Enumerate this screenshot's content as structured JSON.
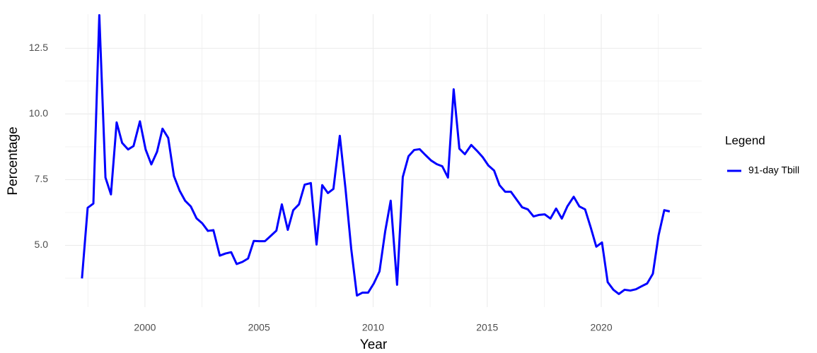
{
  "chart_data": {
    "type": "line",
    "x_label": "Year",
    "y_label": "Percentage",
    "legend_title": "Legend",
    "x": [
      1997.24,
      1997.49,
      1997.74,
      1998.0,
      1998.27,
      1998.51,
      1998.76,
      1999.0,
      1999.26,
      1999.5,
      1999.78,
      2000.03,
      2000.28,
      2000.53,
      2000.77,
      2001.02,
      2001.27,
      2001.52,
      2001.76,
      2002.01,
      2002.26,
      2002.51,
      2002.76,
      2003.0,
      2003.28,
      2003.53,
      2003.78,
      2004.02,
      2004.27,
      2004.52,
      2004.77,
      2005.0,
      2005.26,
      2005.5,
      2005.76,
      2006.0,
      2006.26,
      2006.5,
      2006.75,
      2007.0,
      2007.27,
      2007.52,
      2007.77,
      2008.02,
      2008.26,
      2008.54,
      2008.79,
      2009.04,
      2009.29,
      2009.53,
      2009.78,
      2010.03,
      2010.28,
      2010.53,
      2010.77,
      2011.05,
      2011.3,
      2011.55,
      2011.8,
      2012.04,
      2012.29,
      2012.54,
      2012.79,
      2013.03,
      2013.28,
      2013.53,
      2013.78,
      2014.02,
      2014.3,
      2014.55,
      2014.8,
      2015.05,
      2015.3,
      2015.54,
      2015.79,
      2016.04,
      2016.28,
      2016.53,
      2016.78,
      2017.03,
      2017.28,
      2017.52,
      2017.77,
      2018.02,
      2018.27,
      2018.51,
      2018.79,
      2019.04,
      2019.29,
      2019.54,
      2019.78,
      2020.03,
      2020.28,
      2020.53,
      2020.77,
      2021.02,
      2021.27,
      2021.52,
      2021.76,
      2022.01,
      2022.26,
      2022.51,
      2022.76,
      2023.0
    ],
    "series": [
      {
        "name": "91-day Tbill",
        "color": "#0000ff",
        "values": [
          3.74,
          6.43,
          6.59,
          13.76,
          7.58,
          6.94,
          9.68,
          8.9,
          8.65,
          8.78,
          9.72,
          8.65,
          8.08,
          8.56,
          9.44,
          9.09,
          7.64,
          7.08,
          6.7,
          6.48,
          6.03,
          5.84,
          5.55,
          5.58,
          4.61,
          4.69,
          4.74,
          4.29,
          4.37,
          4.5,
          5.17,
          5.16,
          5.16,
          5.35,
          5.56,
          6.56,
          5.59,
          6.34,
          6.56,
          7.31,
          7.37,
          5.03,
          7.29,
          6.99,
          7.15,
          9.17,
          7.15,
          4.87,
          3.09,
          3.2,
          3.2,
          3.55,
          4.01,
          5.54,
          6.7,
          3.5,
          7.6,
          8.39,
          8.63,
          8.66,
          8.44,
          8.23,
          8.09,
          8.01,
          7.58,
          10.94,
          8.68,
          8.47,
          8.82,
          8.6,
          8.36,
          8.04,
          7.85,
          7.29,
          7.04,
          7.04,
          6.75,
          6.45,
          6.37,
          6.1,
          6.16,
          6.18,
          6.02,
          6.4,
          6.02,
          6.48,
          6.85,
          6.48,
          6.37,
          5.67,
          4.95,
          5.11,
          3.6,
          3.31,
          3.15,
          3.31,
          3.28,
          3.33,
          3.44,
          3.55,
          3.92,
          5.38,
          6.34,
          6.29
        ]
      }
    ],
    "xlim": [
      1996.5,
      2024.4
    ],
    "ylim": [
      2.65,
      13.8
    ],
    "xticks": [
      2000,
      2005,
      2010,
      2015,
      2020
    ],
    "yticks": [
      {
        "value": 5,
        "label": "5.0"
      },
      7.5,
      {
        "value": 10,
        "label": "10.0"
      },
      12.5
    ],
    "x_minor_ticks": [
      1997.5,
      2002.5,
      2007.5,
      2012.5,
      2017.5,
      2022.5
    ],
    "y_minor_ticks": [
      3.75,
      6.25,
      8.75,
      11.25
    ],
    "grid": true,
    "legend": "right"
  }
}
